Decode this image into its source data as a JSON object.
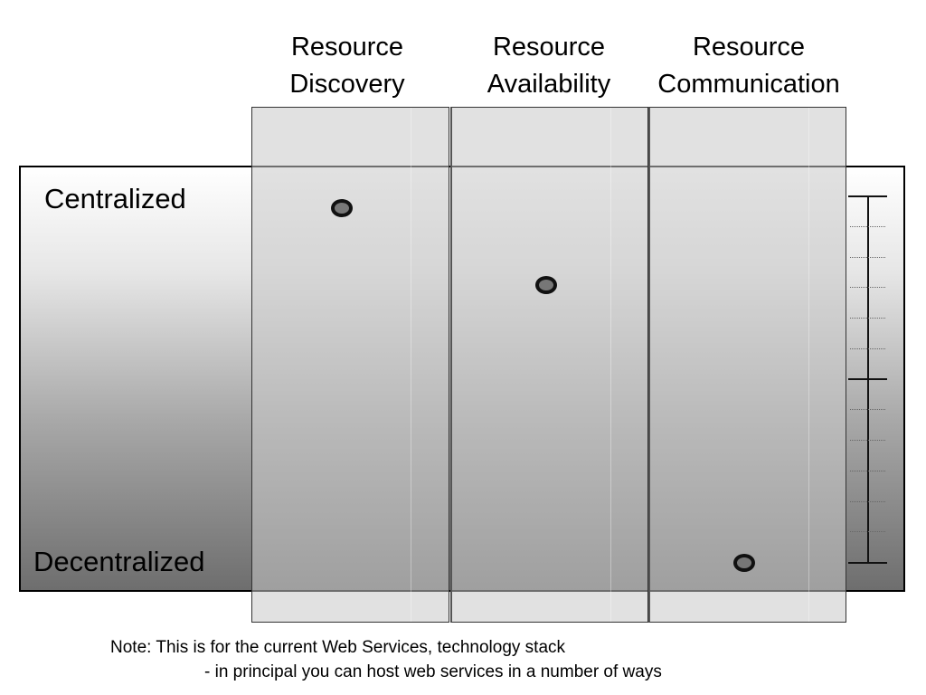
{
  "columns": [
    {
      "line1": "Resource",
      "line2": "Discovery"
    },
    {
      "line1": "Resource",
      "line2": "Availability"
    },
    {
      "line1": "Resource",
      "line2": "Communication"
    }
  ],
  "rows": {
    "top": "Centralized",
    "bottom": "Decentralized"
  },
  "markers": [
    {
      "column": "Resource Discovery",
      "level": 0.03
    },
    {
      "column": "Resource Availability",
      "level": 0.24
    },
    {
      "column": "Resource Communication",
      "level": 1.0
    }
  ],
  "note": {
    "line1": "Note: This is for the current Web Services, technology stack",
    "line2": "- in principal you can host web services in a number of ways"
  }
}
